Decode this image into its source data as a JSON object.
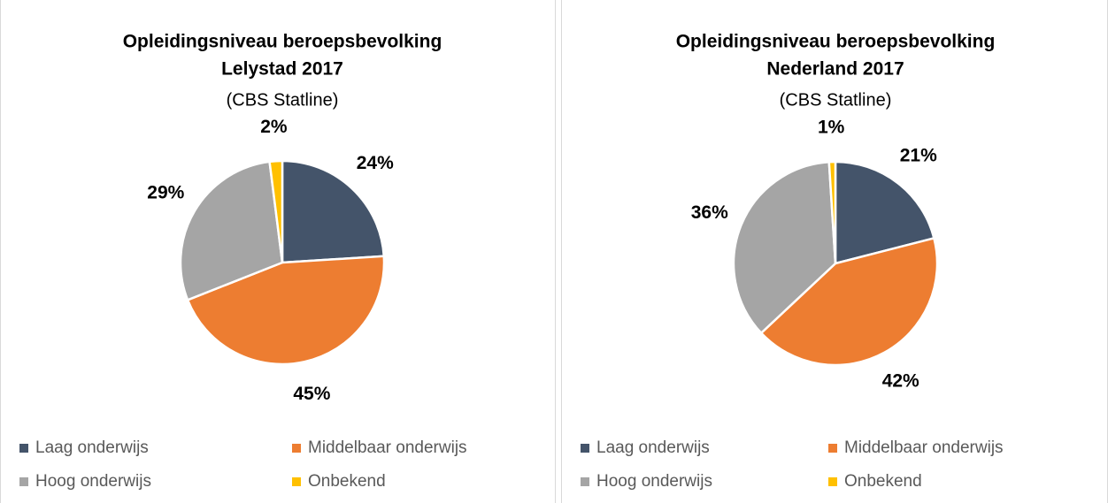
{
  "chart_data": [
    {
      "type": "pie",
      "title": [
        "Opleidingsniveau beroepsbevolking",
        "Lelystad 2017"
      ],
      "subtitle": "(CBS Statline)",
      "categories": [
        "Laag onderwijs",
        "Middelbaar onderwijs",
        "Hoog onderwijs",
        "Onbekend"
      ],
      "values": [
        24,
        45,
        29,
        2
      ],
      "value_labels": [
        "24%",
        "45%",
        "29%",
        "2%"
      ],
      "colors": [
        "#44546a",
        "#ed7d31",
        "#a5a5a5",
        "#ffc000"
      ]
    },
    {
      "type": "pie",
      "title": [
        "Opleidingsniveau beroepsbevolking",
        "Nederland 2017"
      ],
      "subtitle": "(CBS Statline)",
      "categories": [
        "Laag onderwijs",
        "Middelbaar onderwijs",
        "Hoog onderwijs",
        "Onbekend"
      ],
      "values": [
        21,
        42,
        36,
        1
      ],
      "value_labels": [
        "21%",
        "42%",
        "36%",
        "1%"
      ],
      "colors": [
        "#44546a",
        "#ed7d31",
        "#a5a5a5",
        "#ffc000"
      ]
    }
  ]
}
